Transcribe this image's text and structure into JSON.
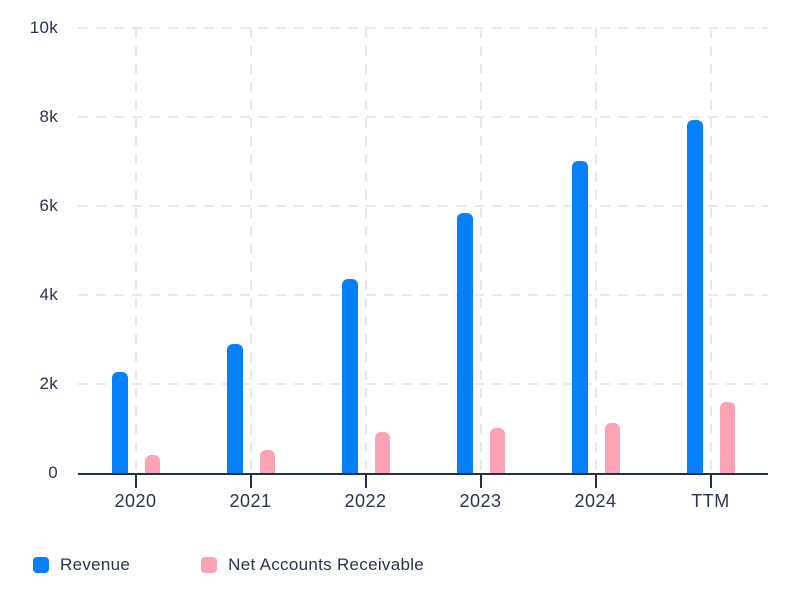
{
  "chart_data": {
    "type": "bar",
    "title": "",
    "xlabel": "",
    "ylabel": "",
    "categories": [
      "2020",
      "2021",
      "2022",
      "2023",
      "2024",
      "TTM"
    ],
    "series": [
      {
        "name": "Revenue",
        "color": "#0680fa",
        "values": [
          2260,
          2900,
          4350,
          5850,
          7000,
          7930
        ]
      },
      {
        "name": "Net Accounts Receivable",
        "color": "#fba3b4",
        "values": [
          400,
          520,
          930,
          1020,
          1130,
          1600
        ]
      }
    ],
    "ylim": [
      0,
      10000
    ],
    "y_ticks": [
      {
        "value": 0,
        "label": "0"
      },
      {
        "value": 2000,
        "label": "2k"
      },
      {
        "value": 4000,
        "label": "4k"
      },
      {
        "value": 6000,
        "label": "6k"
      },
      {
        "value": 8000,
        "label": "8k"
      },
      {
        "value": 10000,
        "label": "10k"
      }
    ],
    "grid": "dashed",
    "legend_position": "bottom-left"
  },
  "colors": {
    "axis": "#23304b",
    "text": "#2b344d",
    "grid": "#e9e9e9",
    "background": "#ffffff"
  }
}
